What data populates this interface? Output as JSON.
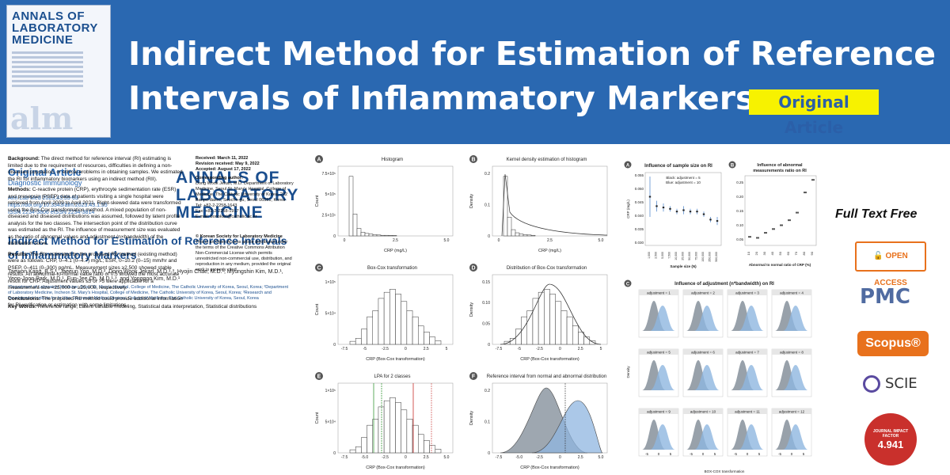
{
  "banner": {
    "cover_title": [
      "ANNALS OF",
      "LABORATORY",
      "MEDICINE"
    ],
    "cover_mark": "alm",
    "headline_1": "Indirect Method for Estimation of Reference",
    "headline_2": "Intervals of Inflammatory Markers",
    "badge": "Original Article"
  },
  "paper": {
    "type": "Original Article",
    "section": "Diagnostic Immunology",
    "citation": "Ann Lab Med 2023;43:55-63",
    "doi": "https://doi.org/10.3343/alm.2023.43.1.55",
    "issn": "ISSN 2234-3806    eISSN 2234-3814",
    "logo": [
      "ANNALS OF",
      "LABORATORY",
      "MEDICINE"
    ],
    "title": "Indirect Method for Estimation of Reference Intervals of Inflammatory Markers",
    "authors": "Taewon Kang, B.S.¹, Jaeeun Yoo, M.D.², Dong Wook Jekarl, M.D.¹·³, Hyojin Chae, M.D.¹, Myungshin Kim, M.D.¹, Yeon-Joon Park, M.D.¹, Eun-Jee Oh, M.D.¹·³, and Yonggoo Kim, M.D.¹",
    "affiliation": "¹Department of Laboratory Medicine, Seoul St. Mary's Hospital, College of Medicine, The Catholic University of Korea, Seoul, Korea; ²Department of Laboratory Medicine, Incheon St. Mary's Hospital, College of Medicine, The Catholic University of Korea, Seoul, Korea; ³Research and Development Institute for In Vitro Diagnostic Medical Devices, College of Medicine, The Catholic University of Korea, Seoul, Korea",
    "background_label": "Background:",
    "background": "The direct method for reference interval (RI) estimating is limited due to the requirement of resources, difficulties in defining a non-diseased population, or ethical problems in obtaining samples. We estimated the RI for inflammatory biomarkers using an indirect method (RII).",
    "methods_label": "Methods:",
    "methods": "C-reactive protein (CRP), erythrocyte sedimentation rate (ESR) and presepsin (PSEP) data of patients visiting a single hospital were retrieved from April 2009 to April 2021. Right-skewed data were transformed using the Box-Cox transformation method. A mixed population of non-diseased and diseased distributions was assumed, followed by latent profile analysis for the two classes. The intersection point of the distribution curve was estimated as the RI. The influence of measurement size was evaluated as the ratio of abnormal values and adjustment (n×bandwidth) of the distribution curve.",
    "results_label": "Results:",
    "results": "The RIs estimated by the proposed RII method (existing method) were as follows: CRP, 0–4.1 (0–4.7) mg/L; ESR, 0–10.2 (0–15) mm/hr and PSEP, 0–411 (0–300) pg/mL. Measurement sizes ≥2,500 showed stable results. An abnormal-to-normal value ratio of 0.5 showed the most accurate result for CRP. Adjustment values ≤5 or >5 were applicable for a measurement size <25,000 or ≥25,000, respectively.",
    "conclusions_label": "Conclusions:",
    "conclusions": "The proposed RII method could provide additional information for RI verification or estimation with some limitations.",
    "keywords_label": "Key Words:",
    "keywords": "Reference range, Latent variable modeling, Statistical data interpretation, Statistical distributions",
    "received": "Received: March 11, 2022",
    "revised": "Revision received: May 9, 2022",
    "accepted": "Accepted: August 17, 2022",
    "corr_label": "Corresponding author:",
    "corr": "Dong Wook Jekarl, M.D. Department of Laboratory Medicine, Seoul St. Mary's Hospital, College of Medicine, The Catholic University of Korea, 222 Banpo-daero, Seocho-gu, Seoul 06591, Korea",
    "tel": "Tel: +82-2-2258-1643",
    "fax": "Fax: +82-2-2258-1917",
    "email": "E-mail: bonokarl@catholic.ac.kr",
    "copyright": "© Korean Society for Laboratory Medicine",
    "license": "This is an Open Access article distributed under the terms of the Creative Commons Attribution Non-Commercial License which permits unrestricted non-commercial use, distribution, and reproduction in any medium, provided the original work is properly cited."
  },
  "figure1": {
    "panels": [
      {
        "letter": "A",
        "title": "Histogram",
        "xlabel": "CRP (mg/L)",
        "ylabel": "Count",
        "yticks": [
          "0",
          "2.5×10⁵",
          "5×10⁵",
          "7.5×10⁵"
        ],
        "xticks": [
          "0",
          "2.5",
          "5.0"
        ]
      },
      {
        "letter": "B",
        "title": "Kernel density estimation of histogram",
        "xlabel": "CRP (mg/L)",
        "ylabel": "Density",
        "yticks": [
          "0",
          "0.1",
          "0.2"
        ],
        "xticks": [
          "0",
          "2.5",
          "5.0"
        ]
      },
      {
        "letter": "C",
        "title": "Box-Cox transformation",
        "xlabel": "CRP (Box-Cox transformation)",
        "ylabel": "Count",
        "yticks": [
          "0",
          "5×10⁴",
          "1×10⁵"
        ],
        "xticks": [
          "-7.5",
          "-5",
          "-2.5",
          "0",
          "2.5",
          "5"
        ]
      },
      {
        "letter": "D",
        "title": "Distribution of Box-Cox transformation",
        "xlabel": "CRP (Box-Cox transformation)",
        "ylabel": "Density",
        "yticks": [
          "0",
          "0.05",
          "0.10",
          "0.15"
        ],
        "xticks": [
          "-7.5",
          "-5",
          "-2.5",
          "0",
          "2.5",
          "5"
        ]
      },
      {
        "letter": "E",
        "title": "LPA for 2 classes",
        "xlabel": "CRP (Box-Cox transformation)",
        "ylabel": "Count",
        "yticks": [
          "0",
          "5×10⁴",
          "1×10⁵"
        ],
        "xticks": [
          "-7.5",
          "-5.0",
          "-2.5",
          "0",
          "2.5",
          "5.0"
        ]
      },
      {
        "letter": "F",
        "title": "Reference interval from normal and abnormal distribution",
        "xlabel": "CRP (Box-Cox transformation)",
        "ylabel": "Density",
        "yticks": [
          "0",
          "0.1",
          "0.2"
        ],
        "xticks": [
          "-7.5",
          "-5.0",
          "-2.5",
          "0",
          "2.5",
          "5.0"
        ]
      }
    ]
  },
  "figure2": {
    "a_letter": "A",
    "a_title": "Influence of sample size on RI",
    "a_legend_1": "Black: adjustment = 5",
    "a_legend_2": "Blue: adjustment = 10",
    "a_ylabel": "CRP (mg/L)",
    "a_xlabel": "Sample size (N)",
    "a_yticks": [
      "0.030",
      "0.035",
      "0.040",
      "0.045",
      "0.050",
      "0.055"
    ],
    "a_xticks": [
      "1,000",
      "2,500",
      "5,000",
      "7,500",
      "10,000",
      "25,000",
      "50,000",
      "75,000",
      "100,000",
      "250,000",
      "500,000"
    ],
    "b_letter": "B",
    "b_title_1": "Influence of abnormal",
    "b_title_2": "measurements ratio on RI",
    "b_xlabel": "Abnormal to normal ratio of CRP (%)",
    "b_yticks": [
      "0.05",
      "0.10",
      "0.15",
      "0.20",
      "0.25"
    ],
    "b_xticks": [
      "10",
      "20",
      "30",
      "40",
      "50",
      "60",
      "70",
      "80",
      "90"
    ],
    "c_letter": "C",
    "c_title": "Influence of adjustment (n*bandwidth) on RI",
    "c_ylabel": "Density",
    "c_xlabel": "BOX-COX transformation",
    "c_panels": [
      "adjustment = 1",
      "adjustment = 2",
      "adjustment = 3",
      "adjustment = 4",
      "adjustment = 5",
      "adjustment = 6",
      "adjustment = 7",
      "adjustment = 8",
      "adjustment = 9",
      "adjustment = 10",
      "adjustment = 11",
      "adjustment = 12"
    ],
    "c_xticks": [
      "-5",
      "0",
      "5"
    ]
  },
  "badges": {
    "full_text": "Full Text Free",
    "open_access": "OPEN ACCESS",
    "pmc": "PMC",
    "scopus": "Scopus®",
    "scie": "SCIE",
    "jif_label": "JOURNAL IMPACT FACTOR",
    "jif_value": "4.941"
  },
  "colors": {
    "banner": "#2a68b1",
    "badge_bg": "#f7f200",
    "accent": "#e8711c",
    "figure_blue": "#8fb6e0"
  }
}
